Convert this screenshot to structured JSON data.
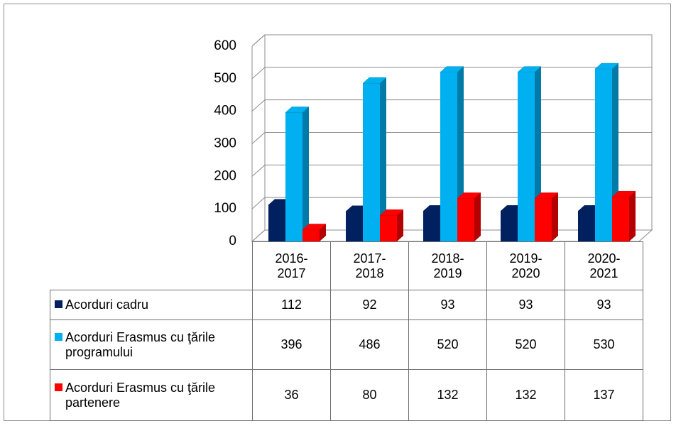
{
  "chart_data": {
    "type": "bar",
    "categories": [
      "2016-2017",
      "2017-2018",
      "2018-2019",
      "2019-2020",
      "2020-2021"
    ],
    "series": [
      {
        "name": "Acorduri cadru",
        "color": "#002060",
        "values": [
          112,
          92,
          93,
          93,
          93
        ]
      },
      {
        "name": "Acorduri Erasmus cu ţările programului",
        "color": "#00b0f0",
        "values": [
          396,
          486,
          520,
          520,
          530
        ]
      },
      {
        "name": "Acorduri Erasmus cu ţările partenere",
        "color": "#ff0000",
        "values": [
          36,
          80,
          132,
          132,
          137
        ]
      }
    ],
    "ylim": [
      0,
      600
    ],
    "yticks": [
      0,
      100,
      200,
      300,
      400,
      500,
      600
    ],
    "grid": true
  }
}
